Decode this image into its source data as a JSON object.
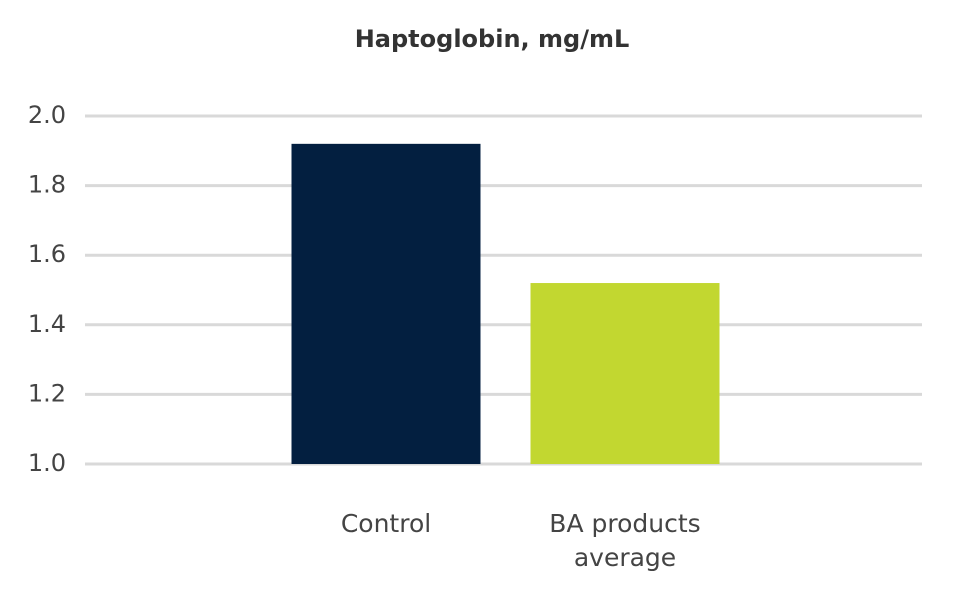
{
  "chart_data": {
    "type": "bar",
    "title": "Haptoglobin, mg/mL",
    "categories": [
      "Control",
      "BA products average"
    ],
    "values": [
      1.92,
      1.52
    ],
    "colors": [
      "#031f40",
      "#c2d730"
    ],
    "ylim": [
      1.0,
      2.0
    ],
    "yticks": [
      {
        "value": 1.0,
        "label": "1.0"
      },
      1.2,
      1.4,
      1.6,
      1.8,
      {
        "value": 2.0,
        "label": "2.0"
      }
    ],
    "grid": true
  }
}
